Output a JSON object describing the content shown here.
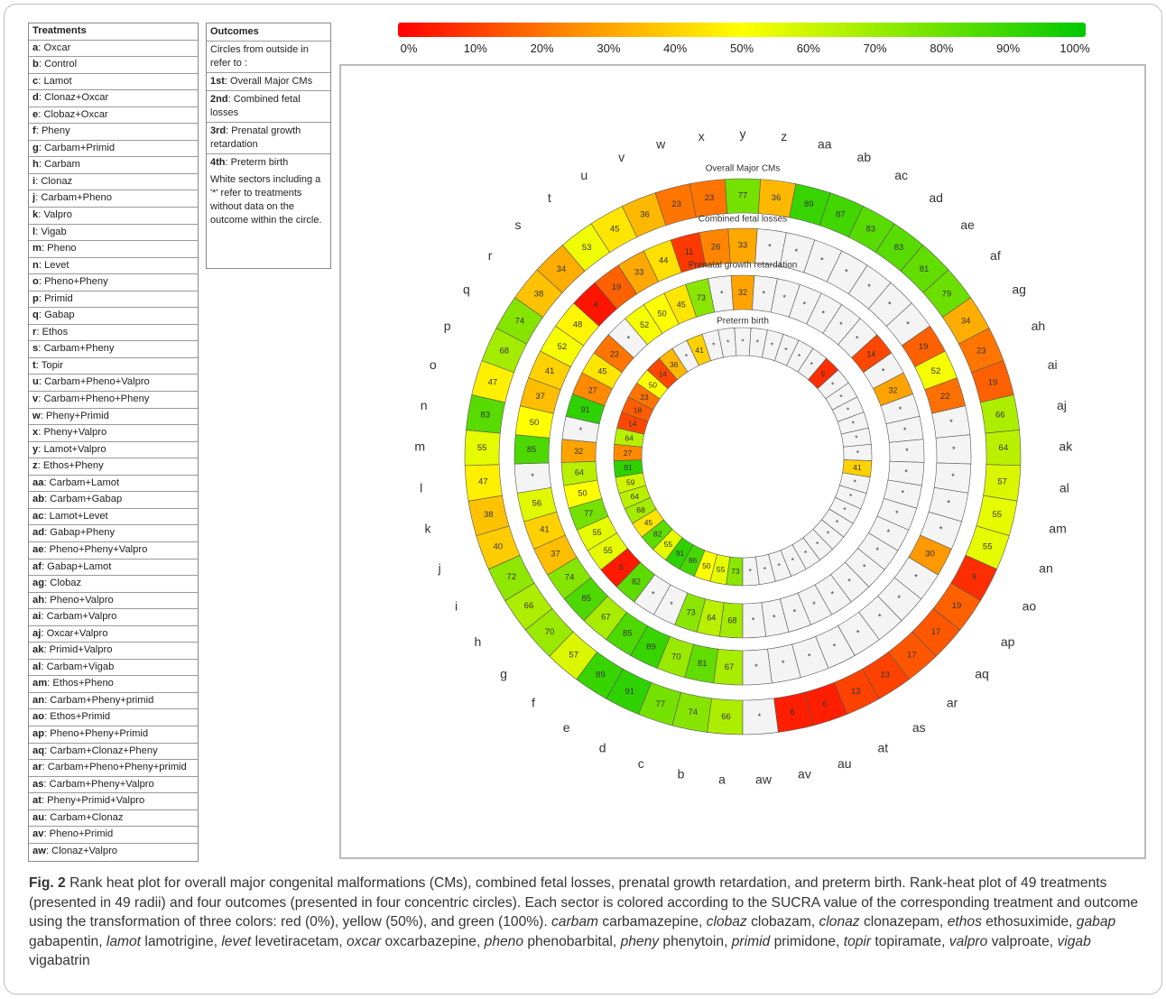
{
  "treatments_header": "Treatments",
  "treatments": [
    {
      "code": "a",
      "name": "Oxcar"
    },
    {
      "code": "b",
      "name": "Control"
    },
    {
      "code": "c",
      "name": "Lamot"
    },
    {
      "code": "d",
      "name": "Clonaz+Oxcar"
    },
    {
      "code": "e",
      "name": "Clobaz+Oxcar"
    },
    {
      "code": "f",
      "name": "Pheny"
    },
    {
      "code": "g",
      "name": "Carbam+Primid"
    },
    {
      "code": "h",
      "name": "Carbam"
    },
    {
      "code": "i",
      "name": "Clonaz"
    },
    {
      "code": "j",
      "name": "Carbam+Pheno"
    },
    {
      "code": "k",
      "name": "Valpro"
    },
    {
      "code": "l",
      "name": "Vigab"
    },
    {
      "code": "m",
      "name": "Pheno"
    },
    {
      "code": "n",
      "name": "Levet"
    },
    {
      "code": "o",
      "name": "Pheno+Pheny"
    },
    {
      "code": "p",
      "name": "Primid"
    },
    {
      "code": "q",
      "name": "Gabap"
    },
    {
      "code": "r",
      "name": "Ethos"
    },
    {
      "code": "s",
      "name": "Carbam+Pheny"
    },
    {
      "code": "t",
      "name": "Topir"
    },
    {
      "code": "u",
      "name": "Carbam+Pheno+Valpro"
    },
    {
      "code": "v",
      "name": "Carbam+Pheno+Pheny"
    },
    {
      "code": "w",
      "name": "Pheny+Primid"
    },
    {
      "code": "x",
      "name": "Pheny+Valpro"
    },
    {
      "code": "y",
      "name": "Lamot+Valpro"
    },
    {
      "code": "z",
      "name": "Ethos+Pheny"
    },
    {
      "code": "aa",
      "name": "Carbam+Lamot"
    },
    {
      "code": "ab",
      "name": "Carbam+Gabap"
    },
    {
      "code": "ac",
      "name": "Lamot+Levet"
    },
    {
      "code": "ad",
      "name": "Gabap+Pheny"
    },
    {
      "code": "ae",
      "name": "Pheno+Pheny+Valpro"
    },
    {
      "code": "af",
      "name": "Gabap+Lamot"
    },
    {
      "code": "ag",
      "name": "Clobaz"
    },
    {
      "code": "ah",
      "name": "Pheno+Valpro"
    },
    {
      "code": "ai",
      "name": "Carbam+Valpro"
    },
    {
      "code": "aj",
      "name": "Oxcar+Valpro"
    },
    {
      "code": "ak",
      "name": "Primid+Valpro"
    },
    {
      "code": "al",
      "name": "Carbam+Vigab"
    },
    {
      "code": "am",
      "name": "Ethos+Pheno"
    },
    {
      "code": "an",
      "name": "Carbam+Pheny+primid"
    },
    {
      "code": "ao",
      "name": "Ethos+Primid"
    },
    {
      "code": "ap",
      "name": "Pheno+Pheny+Primid"
    },
    {
      "code": "aq",
      "name": "Carbam+Clonaz+Pheny"
    },
    {
      "code": "ar",
      "name": "Carbam+Pheno+Pheny+primid"
    },
    {
      "code": "as",
      "name": "Carbam+Pheny+Valpro"
    },
    {
      "code": "at",
      "name": "Pheny+Primid+Valpro"
    },
    {
      "code": "au",
      "name": "Carbam+Clonaz"
    },
    {
      "code": "av",
      "name": "Pheno+Primid"
    },
    {
      "code": "aw",
      "name": "Clonaz+Valpro"
    }
  ],
  "outcomes_box": {
    "header": "Outcomes",
    "intro": "Circles from outside in refer to :",
    "items": [
      {
        "ordinal": "1st",
        "text": "Overall Major CMs"
      },
      {
        "ordinal": "2nd",
        "text": "Combined fetal losses"
      },
      {
        "ordinal": "3rd",
        "text": "Prenatal growth retardation"
      },
      {
        "ordinal": "4th",
        "text": "Preterm birth"
      }
    ],
    "note": "White sectors including a '*' refer to treatments without data on the outcome within the circle."
  },
  "colorbar": {
    "ticks": [
      "0%",
      "10%",
      "20%",
      "30%",
      "40%",
      "50%",
      "60%",
      "70%",
      "80%",
      "90%",
      "100%"
    ],
    "colors": {
      "0": "#ff0000",
      "25": "#ff8a00",
      "50": "#ffff00",
      "75": "#7fe800",
      "100": "#00c800"
    }
  },
  "chart_data": {
    "type": "heatmap",
    "layout": "radial",
    "sector_order": [
      "a",
      "b",
      "c",
      "d",
      "e",
      "f",
      "g",
      "h",
      "i",
      "j",
      "k",
      "l",
      "m",
      "n",
      "o",
      "p",
      "q",
      "r",
      "s",
      "t",
      "u",
      "v",
      "w",
      "x",
      "y",
      "z",
      "aa",
      "ab",
      "ac",
      "ad",
      "ae",
      "af",
      "ag",
      "ah",
      "ai",
      "aj",
      "ak",
      "al",
      "am",
      "an",
      "ao",
      "ap",
      "aq",
      "ar",
      "as",
      "at",
      "au",
      "av",
      "aw"
    ],
    "missing_marker": "*",
    "scale": {
      "min": 0,
      "mid": 50,
      "max": 100,
      "min_color": "#ff0000",
      "mid_color": "#ffff00",
      "max_color": "#00c800"
    },
    "rings": [
      {
        "name": "Overall Major CMs",
        "values": [
          66,
          74,
          77,
          91,
          89,
          57,
          70,
          66,
          72,
          40,
          38,
          47,
          55,
          83,
          47,
          68,
          74,
          38,
          34,
          53,
          45,
          36,
          23,
          23,
          77,
          36,
          89,
          87,
          83,
          83,
          81,
          79,
          34,
          23,
          19,
          66,
          64,
          57,
          55,
          55,
          9,
          19,
          17,
          17,
          13,
          13,
          6,
          6,
          null
        ]
      },
      {
        "name": "Combined fetal losses",
        "values": [
          67,
          81,
          70,
          89,
          85,
          67,
          85,
          74,
          37,
          41,
          56,
          null,
          85,
          50,
          37,
          41,
          52,
          48,
          4,
          19,
          33,
          44,
          11,
          26,
          33,
          null,
          null,
          null,
          null,
          null,
          null,
          null,
          19,
          52,
          22,
          null,
          null,
          null,
          null,
          null,
          30,
          null,
          null,
          null,
          null,
          null,
          null,
          null,
          null
        ]
      },
      {
        "name": "Prenatal growth retardation",
        "values": [
          68,
          64,
          73,
          null,
          null,
          82,
          5,
          55,
          55,
          77,
          50,
          64,
          32,
          null,
          91,
          27,
          45,
          23,
          null,
          52,
          50,
          45,
          73,
          null,
          32,
          null,
          null,
          null,
          null,
          null,
          null,
          14,
          null,
          32,
          null,
          null,
          null,
          null,
          null,
          null,
          null,
          null,
          null,
          null,
          null,
          null,
          null,
          null,
          null
        ]
      },
      {
        "name": "Preterm birth",
        "values": [
          73,
          55,
          50,
          86,
          91,
          55,
          82,
          45,
          68,
          64,
          59,
          91,
          27,
          64,
          14,
          18,
          23,
          50,
          14,
          36,
          null,
          41,
          null,
          null,
          null,
          null,
          null,
          null,
          null,
          null,
          9,
          null,
          null,
          null,
          null,
          null,
          null,
          41,
          null,
          null,
          null,
          null,
          null,
          null,
          null,
          null,
          null,
          null,
          null
        ]
      }
    ]
  },
  "caption": {
    "fig_label": "Fig. 2",
    "title": "Rank heat plot for overall major congenital malformations (CMs), combined fetal losses, prenatal growth retardation, and preterm birth.",
    "body": "Rank-heat plot of 49 treatments (presented in 49 radii) and four outcomes (presented in four concentric circles). Each sector is colored according to the SUCRA value of the corresponding treatment and outcome using the transformation of three colors: red (0%), yellow (50%), and green (100%).",
    "abbreviations": [
      {
        "abbr": "carbam",
        "full": "carbamazepine"
      },
      {
        "abbr": "clobaz",
        "full": "clobazam"
      },
      {
        "abbr": "clonaz",
        "full": "clonazepam"
      },
      {
        "abbr": "ethos",
        "full": "ethosuximide"
      },
      {
        "abbr": "gabap",
        "full": "gabapentin"
      },
      {
        "abbr": "lamot",
        "full": "lamotrigine"
      },
      {
        "abbr": "levet",
        "full": "levetiracetam"
      },
      {
        "abbr": "oxcar",
        "full": "oxcarbazepine"
      },
      {
        "abbr": "pheno",
        "full": "phenobarbital"
      },
      {
        "abbr": "pheny",
        "full": "phenytoin"
      },
      {
        "abbr": "primid",
        "full": "primidone"
      },
      {
        "abbr": "topir",
        "full": "topiramate"
      },
      {
        "abbr": "valpro",
        "full": "valproate"
      },
      {
        "abbr": "vigab",
        "full": "vigabatrin"
      }
    ]
  }
}
